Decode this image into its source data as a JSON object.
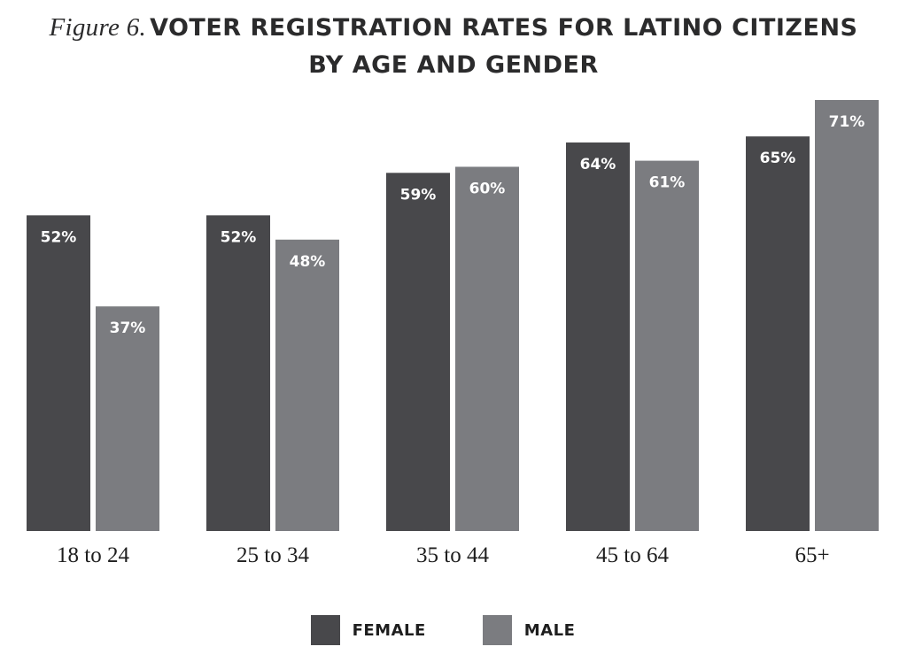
{
  "colors": {
    "female": "#48484b",
    "male": "#7b7c80",
    "background": "#ffffff"
  },
  "header": {
    "figure_label": "Figure 6.",
    "title_line1": "VOTER REGISTRATION RATES FOR LATINO CITIZENS",
    "title_line2": "BY AGE AND GENDER"
  },
  "legend": {
    "female_label": "FEMALE",
    "male_label": "MALE"
  },
  "chart_data": {
    "type": "bar",
    "title": "Figure 6. VOTER REGISTRATION RATES FOR LATINO CITIZENS BY AGE AND GENDER",
    "categories": [
      "18 to 24",
      "25 to 34",
      "35 to 44",
      "45 to 64",
      "65+"
    ],
    "series": [
      {
        "name": "FEMALE",
        "values": [
          52,
          52,
          59,
          64,
          65
        ],
        "labels": [
          "52%",
          "52%",
          "59%",
          "64%",
          "65%"
        ]
      },
      {
        "name": "MALE",
        "values": [
          37,
          48,
          60,
          61,
          71
        ],
        "labels": [
          "37%",
          "48%",
          "60%",
          "61%",
          "71%"
        ]
      }
    ],
    "xlabel": "",
    "ylabel": "",
    "ylim": [
      0,
      71
    ],
    "grid": false,
    "legend_position": "bottom-center"
  }
}
